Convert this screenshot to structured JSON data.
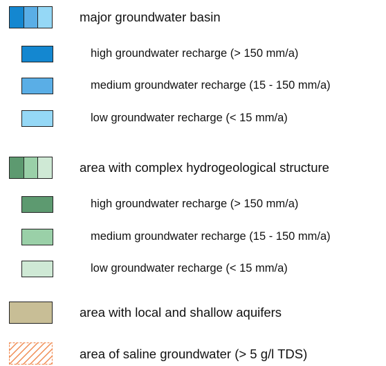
{
  "legend": {
    "groundwater_basin": {
      "label": "major groundwater basin",
      "colors": [
        "#1487d0",
        "#5aaee6",
        "#95d8f6"
      ],
      "items": [
        {
          "label": "high groundwater recharge (> 150 mm/a)",
          "color": "#1487d0"
        },
        {
          "label": "medium groundwater recharge (15 - 150  mm/a)",
          "color": "#5aaee6"
        },
        {
          "label": "low groundwater recharge (< 15 mm/a)",
          "color": "#95d8f6"
        }
      ]
    },
    "complex_structure": {
      "label": "area with complex hydrogeological structure",
      "colors": [
        "#5d9a70",
        "#9ad0a8",
        "#cfe9d5"
      ],
      "items": [
        {
          "label": "high groundwater recharge (> 150 mm/a)",
          "color": "#5d9a70"
        },
        {
          "label": "medium groundwater recharge (15 - 150  mm/a)",
          "color": "#9ad0a8"
        },
        {
          "label": "low groundwater recharge (< 15 mm/a)",
          "color": "#cfe9d5"
        }
      ]
    },
    "shallow_aquifers": {
      "label": "area with local and shallow aquifers",
      "color": "#c8be96"
    },
    "saline_groundwater": {
      "label": "area of saline groundwater  (> 5 g/l TDS)",
      "hatch_color": "#f08a50"
    }
  }
}
